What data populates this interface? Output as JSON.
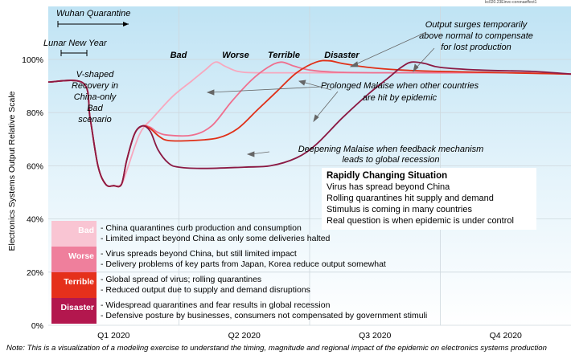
{
  "source_ref": "kc020.23Einvc-coronaeffect1",
  "chart_data": {
    "type": "line",
    "ylabel": "Electronics Systems Output Relative Scale",
    "y_ticks": [
      "0%",
      "20%",
      "40%",
      "60%",
      "80%",
      "100%"
    ],
    "ylim": [
      0,
      100
    ],
    "x_categories": [
      "Q1 2020",
      "Q2 2020",
      "Q3 2020",
      "Q4 2020"
    ],
    "grid": true,
    "series": [
      {
        "name": "Bad",
        "color": "#f7a8be",
        "points": [
          [
            0,
            91.5
          ],
          [
            0.27,
            91
          ],
          [
            0.32,
            78
          ],
          [
            0.38,
            60
          ],
          [
            0.44,
            53
          ],
          [
            0.5,
            52.5
          ],
          [
            0.56,
            53
          ],
          [
            0.6,
            58
          ],
          [
            0.7,
            72
          ],
          [
            0.8,
            78
          ],
          [
            0.95,
            86
          ],
          [
            1.1,
            92
          ],
          [
            1.2,
            96
          ],
          [
            1.28,
            99
          ],
          [
            1.35,
            97.5
          ],
          [
            1.45,
            95.5
          ],
          [
            1.6,
            95
          ],
          [
            2,
            95
          ],
          [
            2.5,
            95
          ],
          [
            3,
            95
          ],
          [
            3.5,
            95
          ],
          [
            4,
            94.5
          ]
        ]
      },
      {
        "name": "Worse",
        "color": "#ef6f8e",
        "points": [
          [
            0,
            91.5
          ],
          [
            0.27,
            91
          ],
          [
            0.32,
            78
          ],
          [
            0.38,
            60
          ],
          [
            0.44,
            53
          ],
          [
            0.5,
            52.5
          ],
          [
            0.56,
            53
          ],
          [
            0.6,
            62
          ],
          [
            0.66,
            72
          ],
          [
            0.72,
            75
          ],
          [
            0.78,
            74.5
          ],
          [
            0.84,
            72.5
          ],
          [
            0.92,
            71.5
          ],
          [
            1.1,
            71.5
          ],
          [
            1.25,
            75
          ],
          [
            1.4,
            84
          ],
          [
            1.55,
            92
          ],
          [
            1.68,
            97
          ],
          [
            1.78,
            99
          ],
          [
            1.88,
            97.5
          ],
          [
            2,
            96
          ],
          [
            2.2,
            95.2
          ],
          [
            2.5,
            95
          ],
          [
            3,
            95
          ],
          [
            3.5,
            95
          ],
          [
            4,
            94.5
          ]
        ]
      },
      {
        "name": "Terrible",
        "color": "#e03018",
        "points": [
          [
            0,
            91.5
          ],
          [
            0.27,
            91
          ],
          [
            0.32,
            78
          ],
          [
            0.38,
            60
          ],
          [
            0.44,
            53
          ],
          [
            0.5,
            52.5
          ],
          [
            0.56,
            53
          ],
          [
            0.6,
            62
          ],
          [
            0.66,
            72
          ],
          [
            0.72,
            75
          ],
          [
            0.78,
            74
          ],
          [
            0.85,
            71
          ],
          [
            0.92,
            69.5
          ],
          [
            1.1,
            69.5
          ],
          [
            1.3,
            70.5
          ],
          [
            1.45,
            74
          ],
          [
            1.6,
            81
          ],
          [
            1.75,
            88
          ],
          [
            1.9,
            95
          ],
          [
            2.05,
            99
          ],
          [
            2.15,
            99.5
          ],
          [
            2.25,
            98.5
          ],
          [
            2.45,
            97
          ],
          [
            2.7,
            96
          ],
          [
            3,
            95.5
          ],
          [
            3.5,
            95
          ],
          [
            4,
            94.5
          ]
        ]
      },
      {
        "name": "Disaster",
        "color": "#8b1a44",
        "points": [
          [
            0,
            91.5
          ],
          [
            0.27,
            91
          ],
          [
            0.32,
            78
          ],
          [
            0.38,
            60
          ],
          [
            0.44,
            53
          ],
          [
            0.5,
            52.5
          ],
          [
            0.56,
            53
          ],
          [
            0.6,
            62
          ],
          [
            0.66,
            72
          ],
          [
            0.72,
            75
          ],
          [
            0.78,
            73
          ],
          [
            0.84,
            66
          ],
          [
            0.92,
            61
          ],
          [
            1.0,
            59.5
          ],
          [
            1.2,
            59
          ],
          [
            1.5,
            59.5
          ],
          [
            1.7,
            60
          ],
          [
            1.9,
            63
          ],
          [
            2.05,
            68
          ],
          [
            2.25,
            78
          ],
          [
            2.45,
            87
          ],
          [
            2.6,
            93
          ],
          [
            2.7,
            97
          ],
          [
            2.78,
            99
          ],
          [
            2.88,
            98.5
          ],
          [
            3,
            97
          ],
          [
            3.3,
            96
          ],
          [
            3.7,
            95.5
          ],
          [
            4,
            94.5
          ]
        ]
      }
    ],
    "scenario_labels": [
      "Bad",
      "Worse",
      "Terrible",
      "Disaster"
    ]
  },
  "annotations": {
    "wuhan": "Wuhan Quarantine",
    "lunar": "Lunar New Year",
    "vshape": [
      "V-shaped",
      "Recovery in",
      "China-only",
      "Bad",
      "scenario"
    ],
    "surge": [
      "Output surges temporarily",
      "above normal to compensate",
      "for lost production"
    ],
    "malaise": [
      "Prolonged Malaise when other countries",
      "are hit by epidemic"
    ],
    "deepening": [
      "Deepening Malaise when feedback mechanism",
      "leads to global recession"
    ]
  },
  "infobox": {
    "title": "Rapidly Changing Situation",
    "lines": [
      "Virus has spread beyond China",
      "Rolling quarantines hit supply and demand",
      "Stimulus is coming in many countries",
      "Real question is when epidemic is under control"
    ]
  },
  "legend": [
    {
      "label": "Bad",
      "color": "#f9c5d3",
      "lines": [
        "- China quarantines curb production and consumption",
        "- Limited impact beyond China as only some deliveries halted"
      ]
    },
    {
      "label": "Worse",
      "color": "#ef7f9c",
      "lines": [
        "- Virus spreads beyond China, but still limited impact",
        "- Delivery problems of key parts from Japan, Korea reduce output somewhat"
      ]
    },
    {
      "label": "Terrible",
      "color": "#e5301b",
      "lines": [
        "- Global spread of virus; rolling quarantines",
        "- Reduced output due to supply and demand disruptions"
      ]
    },
    {
      "label": "Disaster",
      "color": "#b3174e",
      "lines": [
        "- Widespread quarantines and fear results in global recession",
        "- Defensive posture by businesses, consumers not compensated by government stimuli"
      ]
    }
  ],
  "note": "Note: This is a visualization of a modeling exercise to understand the timing, magnitude and regional impact  of the epidemic on electronics systems production"
}
